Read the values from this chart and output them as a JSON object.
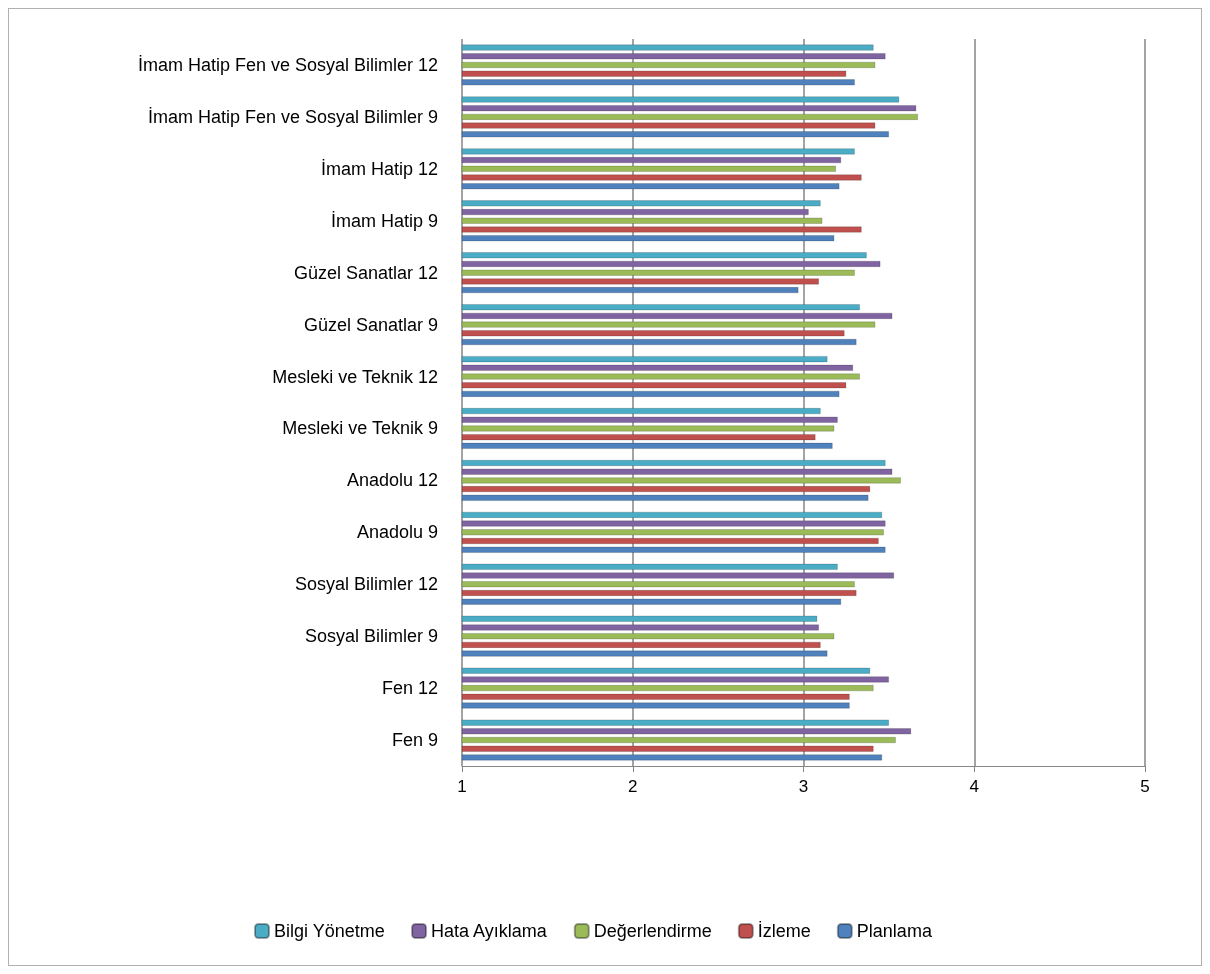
{
  "chart_data": {
    "type": "bar",
    "orientation": "horizontal",
    "categories": [
      "İmam Hatip Fen ve Sosyal Bilimler 12",
      "İmam Hatip Fen ve Sosyal Bilimler 9",
      "İmam Hatip 12",
      "İmam Hatip 9",
      "Güzel Sanatlar 12",
      "Güzel Sanatlar 9",
      "Mesleki ve Teknik 12",
      "Mesleki ve Teknik 9",
      "Anadolu 12",
      "Anadolu 9",
      "Sosyal Bilimler 12",
      "Sosyal Bilimler 9",
      "Fen 12",
      "Fen 9"
    ],
    "series": [
      {
        "name": "Bilgi Yönetme",
        "color": "#4bacc6",
        "values": [
          3.41,
          3.56,
          3.3,
          3.1,
          3.37,
          3.33,
          3.14,
          3.1,
          3.48,
          3.46,
          3.2,
          3.08,
          3.39,
          3.5
        ]
      },
      {
        "name": "Hata Ayıklama",
        "color": "#8064a2",
        "values": [
          3.48,
          3.66,
          3.22,
          3.03,
          3.45,
          3.52,
          3.29,
          3.2,
          3.52,
          3.48,
          3.53,
          3.09,
          3.5,
          3.63
        ]
      },
      {
        "name": "Değerlendirme",
        "color": "#9bbb59",
        "values": [
          3.42,
          3.67,
          3.19,
          3.11,
          3.3,
          3.42,
          3.33,
          3.18,
          3.57,
          3.47,
          3.3,
          3.18,
          3.41,
          3.54
        ]
      },
      {
        "name": "İzleme",
        "color": "#c0504d",
        "values": [
          3.25,
          3.42,
          3.34,
          3.34,
          3.09,
          3.24,
          3.25,
          3.07,
          3.39,
          3.44,
          3.31,
          3.1,
          3.27,
          3.41
        ]
      },
      {
        "name": "Planlama",
        "color": "#4f81bd",
        "values": [
          3.3,
          3.5,
          3.21,
          3.18,
          2.97,
          3.31,
          3.21,
          3.17,
          3.38,
          3.48,
          3.22,
          3.14,
          3.27,
          3.46
        ]
      }
    ],
    "xlim": [
      1,
      5
    ],
    "xticks": [
      1,
      2,
      3,
      4,
      5
    ],
    "grid": "x",
    "legend": "bottom"
  }
}
